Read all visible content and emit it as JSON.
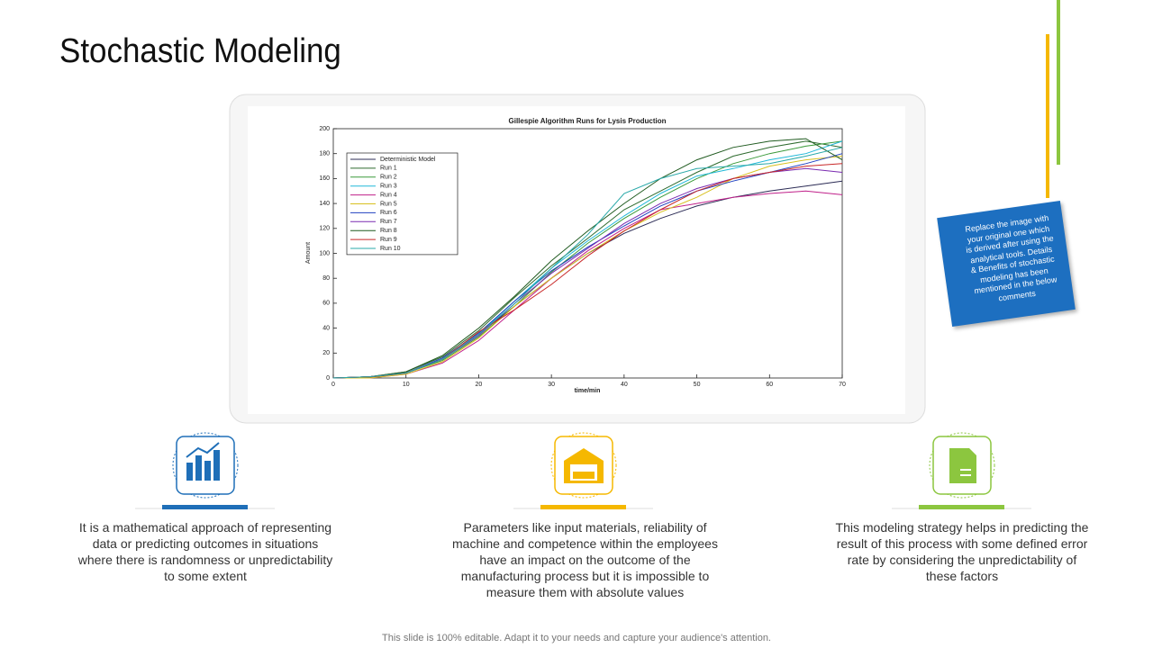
{
  "title": "Stochastic Modeling",
  "chart_data": {
    "type": "line",
    "title": "Gillespie Algorithm Runs for Lysis Production",
    "x_label": "time/min",
    "y_label": "Amount",
    "x": [
      0,
      5,
      10,
      15,
      20,
      25,
      30,
      35,
      40,
      45,
      50,
      55,
      60,
      65,
      70
    ],
    "xlim": [
      0,
      70
    ],
    "xticks": [
      0,
      10,
      20,
      30,
      40,
      50,
      60,
      70
    ],
    "ylim": [
      0,
      200
    ],
    "yticks": [
      0,
      20,
      40,
      60,
      80,
      100,
      120,
      140,
      160,
      180,
      200
    ],
    "legend": "upper left",
    "series": [
      {
        "name": "Deterministic Model",
        "color": "#2b2b55",
        "values": [
          0,
          0.5,
          4,
          15,
          35,
          58,
          80,
          100,
          116,
          128,
          138,
          145,
          150,
          154,
          158
        ]
      },
      {
        "name": "Run 1",
        "color": "#2f6b2f",
        "values": [
          0,
          1,
          5,
          17,
          38,
          65,
          90,
          112,
          135,
          150,
          165,
          178,
          185,
          190,
          185
        ]
      },
      {
        "name": "Run 2",
        "color": "#3a9a3a",
        "values": [
          0,
          1,
          4,
          14,
          33,
          58,
          85,
          108,
          128,
          145,
          160,
          172,
          180,
          186,
          190
        ]
      },
      {
        "name": "Run 3",
        "color": "#20b8d8",
        "values": [
          0,
          1,
          4,
          15,
          35,
          62,
          88,
          110,
          130,
          148,
          162,
          168,
          175,
          180,
          190
        ]
      },
      {
        "name": "Run 4",
        "color": "#c0208a",
        "values": [
          0,
          0,
          3,
          12,
          30,
          55,
          80,
          102,
          120,
          135,
          140,
          145,
          148,
          150,
          147
        ]
      },
      {
        "name": "Run 5",
        "color": "#d8c020",
        "values": [
          0,
          0,
          3,
          13,
          32,
          58,
          80,
          100,
          118,
          133,
          145,
          160,
          170,
          175,
          178
        ]
      },
      {
        "name": "Run 6",
        "color": "#2040c0",
        "values": [
          0,
          1,
          4,
          16,
          36,
          62,
          86,
          105,
          122,
          138,
          150,
          158,
          165,
          172,
          180
        ]
      },
      {
        "name": "Run 7",
        "color": "#7a2ab0",
        "values": [
          0,
          1,
          4,
          15,
          34,
          60,
          84,
          104,
          124,
          140,
          152,
          160,
          165,
          168,
          165
        ]
      },
      {
        "name": "Run 8",
        "color": "#1f5a1f",
        "values": [
          0,
          1,
          5,
          18,
          40,
          66,
          94,
          118,
          140,
          160,
          175,
          185,
          190,
          192,
          175
        ]
      },
      {
        "name": "Run 9",
        "color": "#c82828",
        "values": [
          0,
          1,
          4,
          15,
          37,
          55,
          75,
          98,
          118,
          135,
          150,
          160,
          165,
          170,
          172
        ]
      },
      {
        "name": "Run 10",
        "color": "#28a8a8",
        "values": [
          0,
          1,
          4,
          15,
          35,
          60,
          88,
          115,
          148,
          160,
          168,
          170,
          172,
          178,
          185
        ]
      }
    ]
  },
  "sticky_note": "Replace the image with your original one which is derived after using the analytical tools. Details & Benefits of stochastic modeling has been mentioned in the below comments",
  "features": [
    {
      "text": "It is a mathematical approach of representing data or predicting outcomes in situations where there is randomness or unpredictability to some extent"
    },
    {
      "text": "Parameters like input materials, reliability of machine and competence within the employees have an impact on the outcome of the manufacturing process but it is impossible to measure them with absolute values"
    },
    {
      "text": "This modeling strategy helps in predicting the result of this process with some defined error rate by considering the unpredictability of these factors"
    }
  ],
  "footer": "This slide is 100% editable. Adapt it to your needs and capture your audience's attention."
}
